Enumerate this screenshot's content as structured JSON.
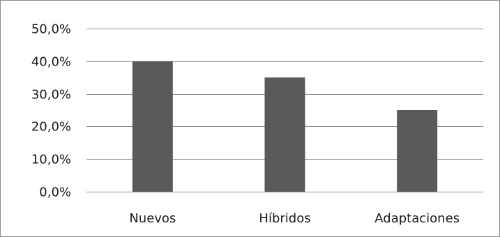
{
  "chart_data": {
    "type": "bar",
    "categories": [
      "Nuevos",
      "Híbridos",
      "Adaptaciones"
    ],
    "values": [
      40.0,
      35.0,
      25.0
    ],
    "title": "",
    "xlabel": "",
    "ylabel": "",
    "ylim": [
      0,
      50
    ],
    "yticks": [
      0,
      10,
      20,
      30,
      40,
      50
    ],
    "ytick_labels": [
      "0,0%",
      "10,0%",
      "20,0%",
      "30,0%",
      "40,0%",
      "50,0%"
    ],
    "grid": true,
    "legend": "none",
    "bar_color": "#5a5a5a",
    "grid_color": "#8c8c8c"
  }
}
